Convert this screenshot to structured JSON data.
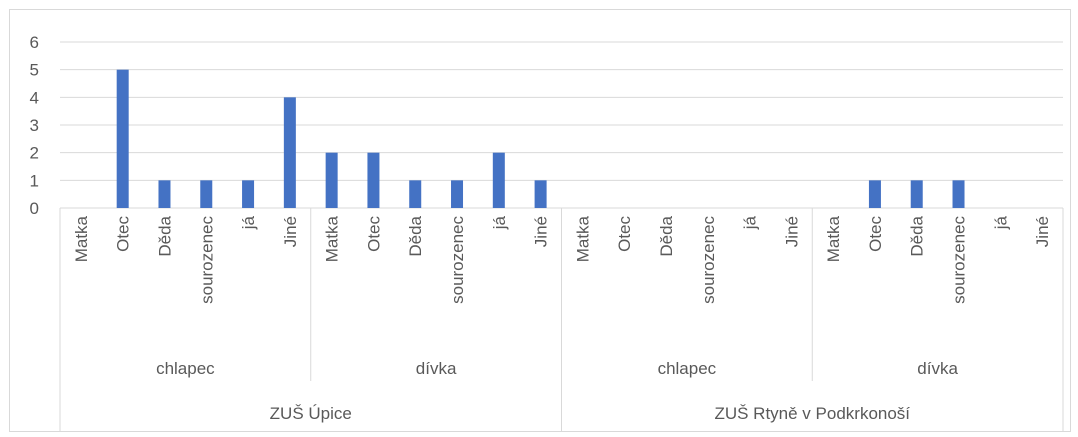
{
  "chart_data": {
    "type": "bar",
    "ylim": [
      0,
      6
    ],
    "yticks": [
      0,
      1,
      2,
      3,
      4,
      5,
      6
    ],
    "grid": true,
    "legend": "none",
    "bar_color": "#4472c4",
    "schools": [
      {
        "name": "ZUŠ Úpice",
        "groups": [
          {
            "name": "chlapec",
            "categories": [
              "Matka",
              "Otec",
              "Děda",
              "sourozenec",
              "já",
              "Jiné"
            ],
            "values": [
              0,
              5,
              1,
              1,
              1,
              4
            ]
          },
          {
            "name": "dívka",
            "categories": [
              "Matka",
              "Otec",
              "Děda",
              "sourozenec",
              "já",
              "Jiné"
            ],
            "values": [
              2,
              2,
              1,
              1,
              2,
              1
            ]
          }
        ]
      },
      {
        "name": "ZUŠ Rtyně v Podkrkonoší",
        "groups": [
          {
            "name": "chlapec",
            "categories": [
              "Matka",
              "Otec",
              "Děda",
              "sourozenec",
              "já",
              "Jiné"
            ],
            "values": [
              0,
              0,
              0,
              0,
              0,
              0
            ]
          },
          {
            "name": "dívka",
            "categories": [
              "Matka",
              "Otec",
              "Děda",
              "sourozenec",
              "já",
              "Jiné"
            ],
            "values": [
              0,
              1,
              1,
              1,
              0,
              0
            ]
          }
        ]
      }
    ]
  }
}
